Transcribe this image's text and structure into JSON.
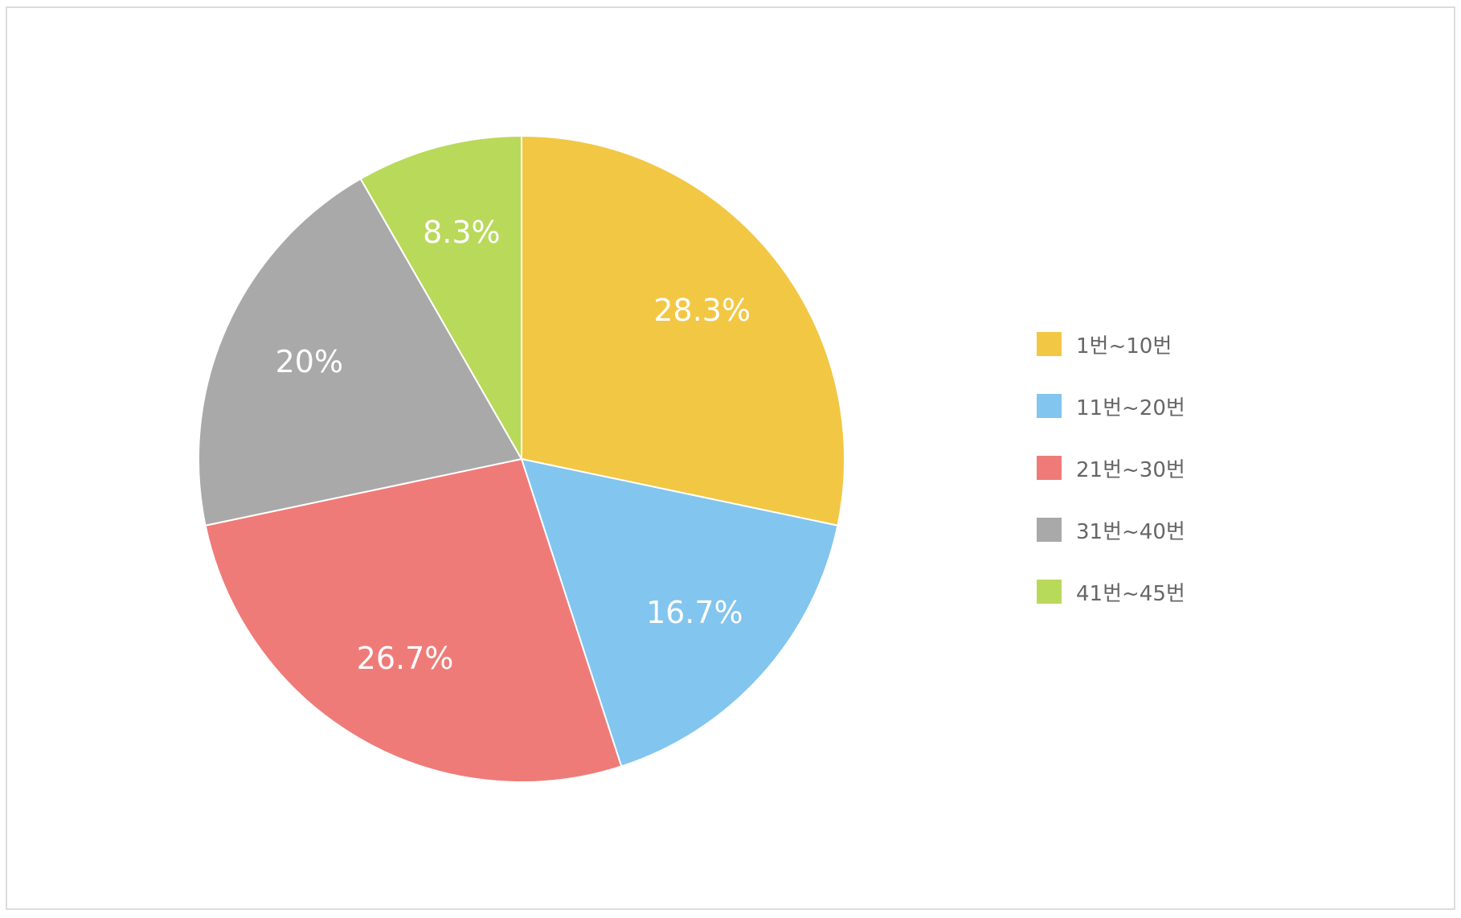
{
  "chart_data": {
    "type": "pie",
    "categories": [
      "1번~10번",
      "11번~20번",
      "21번~30번",
      "31번~40번",
      "41번~45번"
    ],
    "values": [
      28.3,
      16.7,
      26.7,
      20,
      8.3
    ],
    "data_labels": [
      "28.3%",
      "16.7%",
      "26.7%",
      "20%",
      "8.3%"
    ],
    "colors": [
      "#F2C744",
      "#82C5EE",
      "#EF7B78",
      "#A9A9A9",
      "#B9D95A"
    ],
    "start_angle": "12 o'clock",
    "direction": "clockwise",
    "legend_position": "right"
  }
}
